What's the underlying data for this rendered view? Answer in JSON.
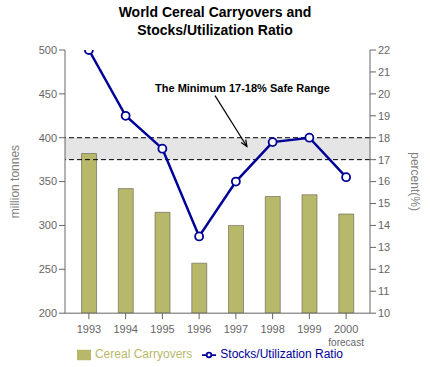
{
  "chart_data": {
    "type": "bar",
    "title": "World Cereal Carryovers and\nStocks/Utilization Ratio",
    "x": [
      1993,
      1994,
      1995,
      1996,
      1997,
      1998,
      1999,
      2000
    ],
    "series": [
      {
        "name": "Cereal Carryovers",
        "type": "bar",
        "color": "#b8b86a",
        "values": [
          382,
          342,
          315,
          257,
          300,
          333,
          335,
          313
        ]
      },
      {
        "name": "Stocks/Utilization Ratio",
        "type": "line",
        "color": "#000099",
        "marker": "o",
        "axis": "y2",
        "values": [
          22.0,
          19.0,
          17.5,
          13.5,
          16.0,
          17.8,
          18.0,
          16.2
        ]
      }
    ],
    "xlim": [
      1992.35,
      2000.65
    ],
    "xticks": [
      1993,
      1994,
      1995,
      1996,
      1997,
      1998,
      1999,
      2000
    ],
    "ylabel": "million tonnes",
    "ylim": [
      200,
      500
    ],
    "yticks": [
      200,
      250,
      300,
      350,
      400,
      450,
      500
    ],
    "y2label": "percent(%)",
    "y2lim": [
      10,
      22
    ],
    "y2ticks": [
      10,
      11,
      12,
      13,
      14,
      15,
      16,
      17,
      18,
      19,
      20,
      21,
      22
    ],
    "safe_range": {
      "lower": 17,
      "upper": 18,
      "axis": "y2"
    },
    "annotations": [
      {
        "text": "The Minimum 17-18% Safe Range",
        "x": 1994.8,
        "y": 20.1,
        "target_x": 1997.3,
        "target_y": 17.6,
        "axis": "y2"
      },
      {
        "text": "forecast",
        "x": 2000
      }
    ],
    "grid": false,
    "legend": "bottom"
  }
}
